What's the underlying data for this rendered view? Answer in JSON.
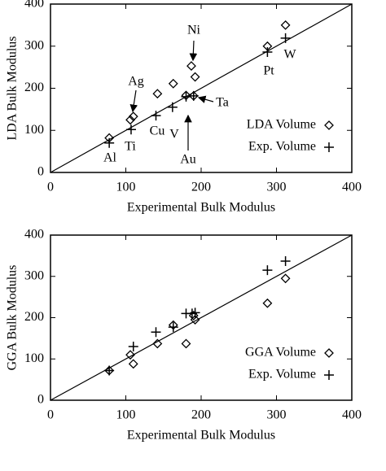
{
  "chart_data": [
    {
      "type": "scatter",
      "xlabel": "Experimental Bulk Modulus",
      "ylabel": "LDA Bulk Modulus",
      "xlim": [
        0,
        400
      ],
      "ylim": [
        0,
        400
      ],
      "xticks": [
        0,
        100,
        200,
        300,
        400
      ],
      "yticks": [
        0,
        100,
        200,
        300,
        400
      ],
      "diagonal": true,
      "legend": "lower right",
      "series": [
        {
          "name": "LDA Volume",
          "marker": "diamond",
          "color": "#000000",
          "x": [
            78,
            106,
            110,
            142,
            163,
            180,
            190,
            187,
            192,
            288,
            312
          ],
          "values": [
            82,
            125,
            133,
            187,
            211,
            183,
            182,
            253,
            227,
            300,
            350
          ]
        },
        {
          "name": "Exp. Volume",
          "marker": "plus",
          "color": "#000000",
          "x": [
            78,
            107,
            140,
            162,
            180,
            190,
            288,
            312
          ],
          "values": [
            70,
            102,
            135,
            155,
            180,
            182,
            286,
            319
          ]
        }
      ],
      "annotations": [
        "Ni",
        "Ag",
        "W",
        "Pt",
        "Ta",
        "Ti",
        "Al",
        "Cu",
        "V",
        "Au"
      ]
    },
    {
      "type": "scatter",
      "xlabel": "Experimental Bulk Modulus",
      "ylabel": "GGA Bulk Modulus",
      "xlim": [
        0,
        400
      ],
      "ylim": [
        0,
        400
      ],
      "xticks": [
        0,
        100,
        200,
        300,
        400
      ],
      "yticks": [
        0,
        100,
        200,
        300,
        400
      ],
      "diagonal": true,
      "legend": "lower right",
      "series": [
        {
          "name": "GGA Volume",
          "marker": "diamond",
          "color": "#000000",
          "x": [
            78,
            106,
            110,
            142,
            163,
            180,
            190,
            192,
            288,
            312
          ],
          "values": [
            72,
            110,
            88,
            137,
            182,
            137,
            205,
            195,
            235,
            295
          ]
        },
        {
          "name": "Exp. Volume",
          "marker": "plus",
          "color": "#000000",
          "x": [
            78,
            110,
            140,
            163,
            180,
            188,
            192,
            288,
            312
          ],
          "values": [
            72,
            130,
            165,
            177,
            210,
            210,
            212,
            315,
            337
          ]
        }
      ]
    }
  ]
}
